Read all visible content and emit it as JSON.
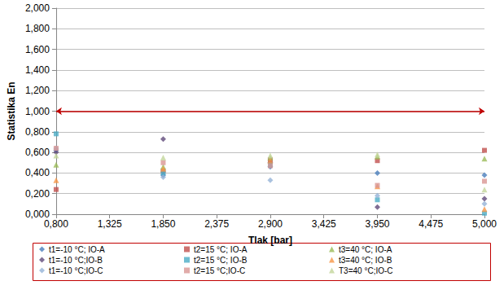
{
  "chart_data": {
    "type": "scatter",
    "x_label": "Tlak [bar]",
    "y_label": "Statistika En",
    "x": [
      0.8,
      1.85,
      2.9,
      3.95,
      5.0
    ],
    "xlim": [
      0.8,
      5.0
    ],
    "xticks": [
      {
        "value": 0.8,
        "label": "0,800"
      },
      {
        "value": 1.325,
        "label": "1,325"
      },
      {
        "value": 1.85,
        "label": "1,850"
      },
      {
        "value": 2.375,
        "label": "2,375"
      },
      {
        "value": 2.9,
        "label": "2,900"
      },
      {
        "value": 3.425,
        "label": "3,425"
      },
      {
        "value": 3.95,
        "label": "3,950"
      },
      {
        "value": 4.475,
        "label": "4,475"
      },
      {
        "value": 5.0,
        "label": "5,000"
      }
    ],
    "ylim": [
      0,
      2
    ],
    "yticks": [
      {
        "value": 0,
        "label": "0,000"
      },
      {
        "value": 0.2,
        "label": "0,200"
      },
      {
        "value": 0.4,
        "label": "0,400"
      },
      {
        "value": 0.6,
        "label": "0,600"
      },
      {
        "value": 0.8,
        "label": "0,800"
      },
      {
        "value": 1,
        "label": "1,000"
      },
      {
        "value": 1.2,
        "label": "1,200"
      },
      {
        "value": 1.4,
        "label": "1,400"
      },
      {
        "value": 1.6,
        "label": "1,600"
      },
      {
        "value": 1.8,
        "label": "1,800"
      },
      {
        "value": 2,
        "label": "2,000"
      }
    ],
    "grid": true,
    "legend": "bottom",
    "reference_line": {
      "y": 1,
      "x": [
        0.8,
        5.0
      ],
      "color": "#c00000"
    },
    "series": [
      {
        "name": "t1=-10 °C; IO-A",
        "color": "#4a7ebb",
        "marker": "diamond",
        "values": [
          0.62,
          0.38,
          0.46,
          0.4,
          0.38
        ]
      },
      {
        "name": "t2=15 °C; IO-A",
        "color": "#c0504d",
        "marker": "square",
        "values": [
          0.24,
          0.42,
          0.53,
          0.52,
          0.62
        ]
      },
      {
        "name": "t3=40 °C; IO-A",
        "color": "#9bbb59",
        "marker": "triangle",
        "values": [
          0.48,
          0.46,
          0.55,
          0.56,
          0.54
        ]
      },
      {
        "name": "t1=-10 °C;IO-B",
        "color": "#604a7b",
        "marker": "diamond",
        "values": [
          0.6,
          0.73,
          0.5,
          0.07,
          0.15
        ]
      },
      {
        "name": "t2=15 °C; IO-B",
        "color": "#4bacc6",
        "marker": "square",
        "values": [
          0.78,
          0.4,
          0.48,
          0.14,
          0.01
        ]
      },
      {
        "name": "t3=40 °C; IO-B",
        "color": "#f79646",
        "marker": "triangle",
        "values": [
          0.33,
          0.44,
          0.52,
          0.27,
          0.05
        ]
      },
      {
        "name": "t1=-10 °C;IO-C",
        "color": "#95b3d7",
        "marker": "diamond",
        "values": [
          0.64,
          0.36,
          0.33,
          0.18,
          0.1
        ]
      },
      {
        "name": "t2=15 °C;IO-C",
        "color": "#d99694",
        "marker": "square",
        "values": [
          0.64,
          0.5,
          0.47,
          0.28,
          0.32
        ]
      },
      {
        "name": "T3=40 °C;IO-C",
        "color": "#c3d69b",
        "marker": "triangle",
        "values": [
          0.57,
          0.55,
          0.57,
          0.58,
          0.24
        ]
      }
    ]
  }
}
